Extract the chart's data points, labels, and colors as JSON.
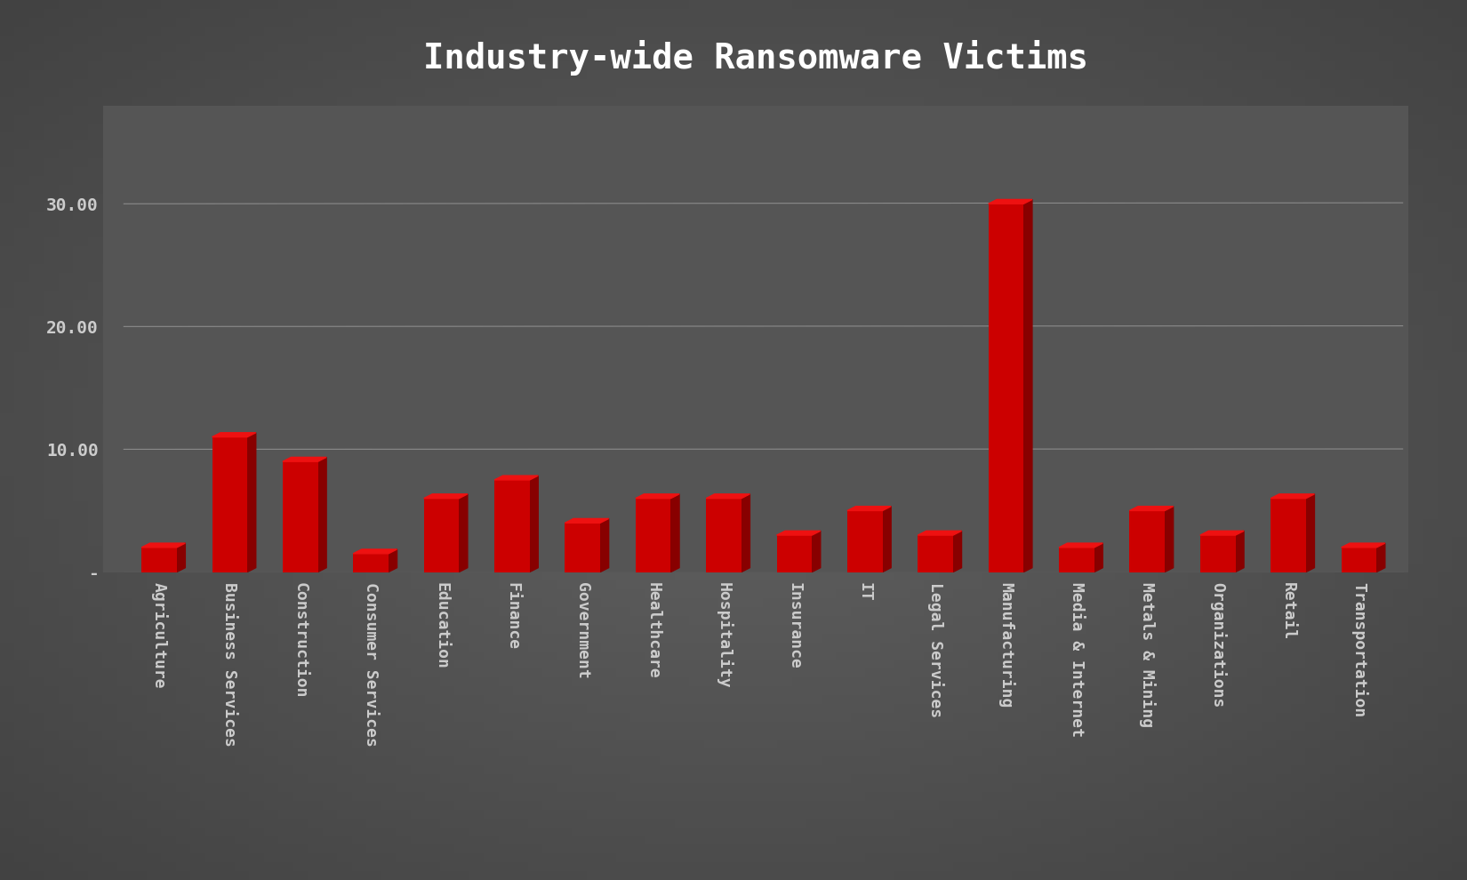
{
  "title": "Industry-wide Ransomware Victims",
  "categories": [
    "Agriculture",
    "Business Services",
    "Construction",
    "Consumer Services",
    "Education",
    "Finance",
    "Government",
    "Healthcare",
    "Hospitality",
    "Insurance",
    "IT",
    "Legal Services",
    "Manufacturing",
    "Media & Internet",
    "Metals & Mining",
    "Organizations",
    "Retail",
    "Transportation"
  ],
  "values": [
    2.0,
    11.0,
    9.0,
    1.5,
    6.0,
    7.5,
    4.0,
    6.0,
    6.0,
    3.0,
    5.0,
    3.0,
    30.0,
    2.0,
    5.0,
    3.0,
    6.0,
    2.0
  ],
  "bar_color": "#cc0000",
  "bar_top_color": "#ee1111",
  "bar_side_color": "#880000",
  "background_color": "#4a4a4a",
  "text_color": "#cccccc",
  "grid_color": "#999999",
  "yticks": [
    0,
    10.0,
    20.0,
    30.0
  ],
  "ytick_labels": [
    "-",
    "10.00",
    "20.00",
    "30.00"
  ],
  "ylim": [
    0,
    38
  ],
  "title_fontsize": 28,
  "tick_fontsize": 14,
  "label_fontsize": 13
}
